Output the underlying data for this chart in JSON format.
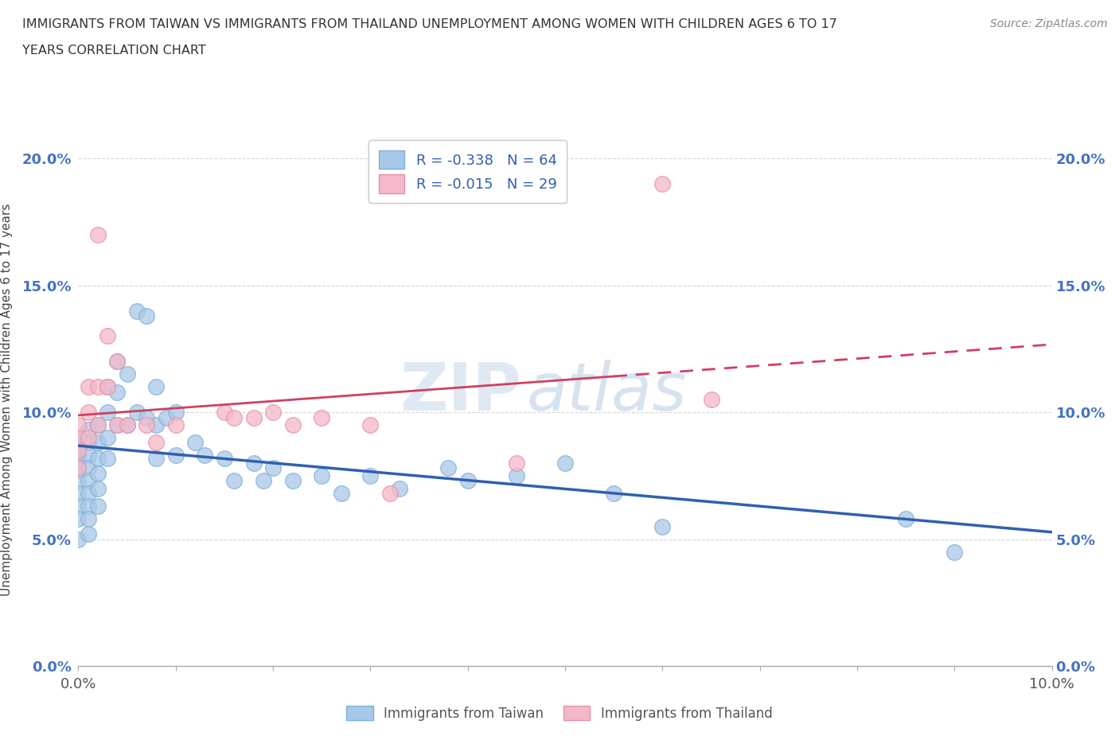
{
  "title_line1": "IMMIGRANTS FROM TAIWAN VS IMMIGRANTS FROM THAILAND UNEMPLOYMENT AMONG WOMEN WITH CHILDREN AGES 6 TO 17",
  "title_line2": "YEARS CORRELATION CHART",
  "source_text": "Source: ZipAtlas.com",
  "ylabel": "Unemployment Among Women with Children Ages 6 to 17 years",
  "xlim": [
    0.0,
    0.1
  ],
  "ylim": [
    0.0,
    0.21
  ],
  "xticks": [
    0.0,
    0.01,
    0.02,
    0.03,
    0.04,
    0.05,
    0.06,
    0.07,
    0.08,
    0.09,
    0.1
  ],
  "yticks": [
    0.0,
    0.05,
    0.1,
    0.15,
    0.2
  ],
  "ytick_labels": [
    "0.0%",
    "5.0%",
    "10.0%",
    "15.0%",
    "20.0%"
  ],
  "xtick_labels": [
    "0.0%",
    "",
    "",
    "",
    "",
    "",
    "",
    "",
    "",
    "",
    "10.0%"
  ],
  "taiwan_color": "#A8C8E8",
  "taiwan_edge_color": "#7EB0D8",
  "thailand_color": "#F4B8C8",
  "thailand_edge_color": "#E890A8",
  "taiwan_line_color": "#3060B0",
  "thailand_line_color": "#D04060",
  "legend_taiwan_label": "R = -0.338   N = 64",
  "legend_thailand_label": "R = -0.015   N = 29",
  "watermark_zip": "ZIP",
  "watermark_atlas": "atlas",
  "taiwan_x": [
    0.0,
    0.0,
    0.0,
    0.0,
    0.0,
    0.0,
    0.0,
    0.0,
    0.0,
    0.0,
    0.001,
    0.001,
    0.001,
    0.001,
    0.001,
    0.001,
    0.001,
    0.001,
    0.001,
    0.002,
    0.002,
    0.002,
    0.002,
    0.002,
    0.002,
    0.003,
    0.003,
    0.003,
    0.003,
    0.004,
    0.004,
    0.004,
    0.005,
    0.005,
    0.006,
    0.006,
    0.007,
    0.007,
    0.008,
    0.008,
    0.008,
    0.009,
    0.01,
    0.01,
    0.012,
    0.013,
    0.015,
    0.016,
    0.018,
    0.019,
    0.02,
    0.022,
    0.025,
    0.027,
    0.03,
    0.033,
    0.038,
    0.04,
    0.045,
    0.05,
    0.055,
    0.06,
    0.085,
    0.09
  ],
  "taiwan_y": [
    0.09,
    0.087,
    0.083,
    0.08,
    0.077,
    0.073,
    0.068,
    0.063,
    0.058,
    0.05,
    0.093,
    0.088,
    0.083,
    0.078,
    0.073,
    0.068,
    0.063,
    0.058,
    0.052,
    0.095,
    0.088,
    0.082,
    0.076,
    0.07,
    0.063,
    0.11,
    0.1,
    0.09,
    0.082,
    0.12,
    0.108,
    0.095,
    0.115,
    0.095,
    0.14,
    0.1,
    0.138,
    0.098,
    0.11,
    0.095,
    0.082,
    0.098,
    0.1,
    0.083,
    0.088,
    0.083,
    0.082,
    0.073,
    0.08,
    0.073,
    0.078,
    0.073,
    0.075,
    0.068,
    0.075,
    0.07,
    0.078,
    0.073,
    0.075,
    0.08,
    0.068,
    0.055,
    0.058,
    0.045
  ],
  "thailand_x": [
    0.0,
    0.0,
    0.0,
    0.0,
    0.001,
    0.001,
    0.001,
    0.002,
    0.002,
    0.002,
    0.003,
    0.003,
    0.004,
    0.004,
    0.005,
    0.007,
    0.008,
    0.01,
    0.015,
    0.016,
    0.018,
    0.02,
    0.022,
    0.025,
    0.03,
    0.032,
    0.045,
    0.06,
    0.065
  ],
  "thailand_y": [
    0.095,
    0.09,
    0.085,
    0.078,
    0.11,
    0.1,
    0.09,
    0.17,
    0.11,
    0.095,
    0.13,
    0.11,
    0.12,
    0.095,
    0.095,
    0.095,
    0.088,
    0.095,
    0.1,
    0.098,
    0.098,
    0.1,
    0.095,
    0.098,
    0.095,
    0.068,
    0.08,
    0.19,
    0.105
  ]
}
